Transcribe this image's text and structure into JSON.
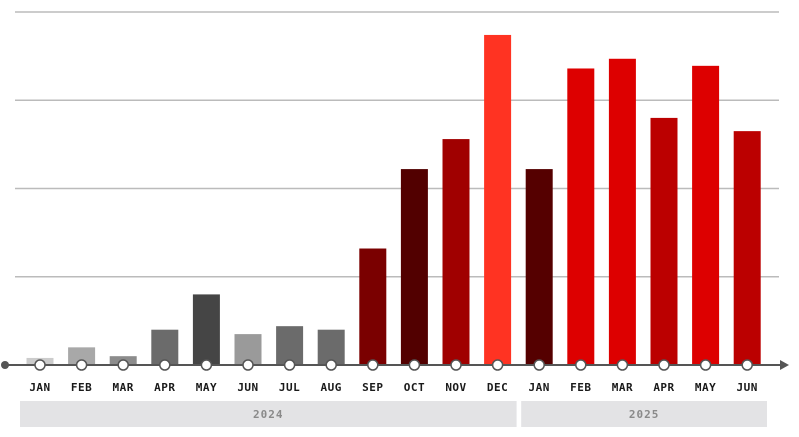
{
  "chart_data": {
    "type": "bar",
    "title": "",
    "xlabel": "",
    "ylabel": "",
    "categories": [
      "JAN",
      "FEB",
      "MAR",
      "APR",
      "MAY",
      "JUN",
      "JUL",
      "AUG",
      "SEP",
      "OCT",
      "NOV",
      "DEC",
      "JAN",
      "FEB",
      "MAR",
      "APR",
      "MAY",
      "JUN"
    ],
    "values": [
      0.8,
      2.0,
      1.0,
      4.0,
      8.0,
      3.5,
      4.4,
      4.0,
      13.2,
      22.2,
      25.6,
      37.4,
      22.2,
      33.6,
      34.7,
      28.0,
      33.9,
      26.5
    ],
    "colors": [
      "#cccccc",
      "#a8a8a8",
      "#8c8c8c",
      "#6b6b6b",
      "#454545",
      "#9a9a9a",
      "#6b6b6b",
      "#6b6b6b",
      "#7a0000",
      "#520000",
      "#a00000",
      "#ff3322",
      "#550000",
      "#dd0000",
      "#dd0000",
      "#bb0000",
      "#dd0000",
      "#bb0000"
    ],
    "groups": [
      {
        "label": "2024",
        "start": 0,
        "end": 11
      },
      {
        "label": "2025",
        "start": 12,
        "end": 17
      }
    ],
    "ylim": [
      0,
      40
    ],
    "gridlines": [
      10,
      20,
      30,
      40
    ],
    "grid": true,
    "axis_color": "#555555",
    "grid_color": "#bbbbbb",
    "group_band_color": "#e3e3e5"
  }
}
